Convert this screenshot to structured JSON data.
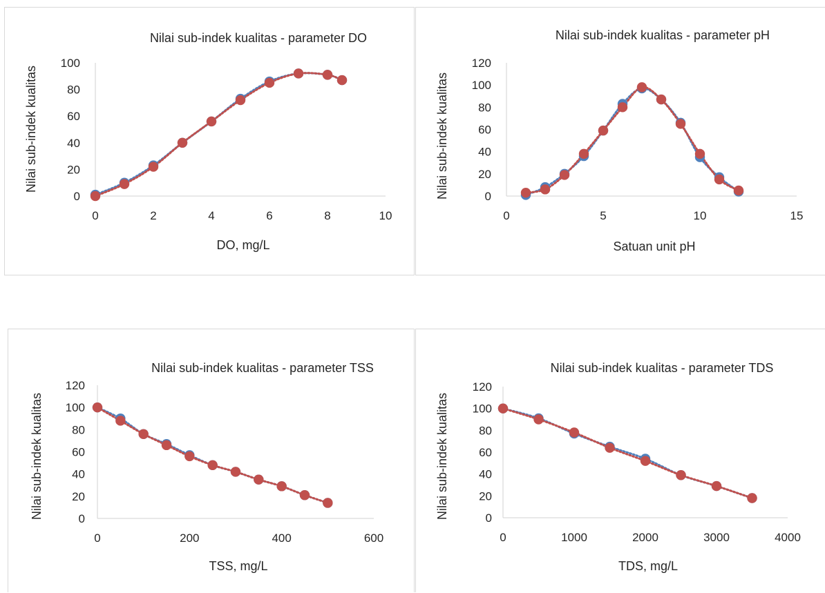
{
  "colors": {
    "series1": "#4f81bd",
    "series2": "#c0504d",
    "axis": "#d9d9d9",
    "text": "#262626"
  },
  "chart_data": [
    {
      "id": "do",
      "type": "scatter",
      "title": "Nilai sub-indek kualitas - parameter DO",
      "xlabel": "DO, mg/L",
      "ylabel": "Nilai sub-indek kualitas",
      "xlim": [
        0,
        10
      ],
      "ylim": [
        0,
        100
      ],
      "xticks": [
        0,
        2,
        4,
        6,
        8,
        10
      ],
      "yticks": [
        0,
        20,
        40,
        60,
        80,
        100
      ],
      "grid": false,
      "legend": "none",
      "series": [
        {
          "color": "#4f81bd",
          "x": [
            0,
            1,
            2,
            3,
            4,
            5,
            6,
            7,
            8,
            8.5
          ],
          "y": [
            1,
            10,
            23,
            40,
            56,
            73,
            86,
            92,
            91,
            87
          ]
        },
        {
          "color": "#c0504d",
          "x": [
            0,
            1,
            2,
            3,
            4,
            5,
            6,
            7,
            8,
            8.5
          ],
          "y": [
            0,
            9,
            22,
            40,
            56,
            72,
            85,
            92,
            91,
            87
          ]
        }
      ]
    },
    {
      "id": "ph",
      "type": "scatter",
      "title": "Nilai sub-indek kualitas - parameter pH",
      "xlabel": "Satuan unit pH",
      "ylabel": "Nilai sub-indek kualitas",
      "xlim": [
        0,
        15
      ],
      "ylim": [
        0,
        120
      ],
      "xticks": [
        0,
        5,
        10,
        15
      ],
      "yticks": [
        0,
        20,
        40,
        60,
        80,
        100,
        120
      ],
      "grid": false,
      "legend": "none",
      "series": [
        {
          "color": "#4f81bd",
          "x": [
            1,
            2,
            3,
            4,
            5,
            6,
            7,
            8,
            9,
            10,
            11,
            12
          ],
          "y": [
            1,
            8,
            20,
            36,
            59,
            83,
            97,
            87,
            66,
            35,
            17,
            4
          ]
        },
        {
          "color": "#c0504d",
          "x": [
            1,
            2,
            3,
            4,
            5,
            6,
            7,
            8,
            9,
            10,
            11,
            12
          ],
          "y": [
            3,
            6,
            19,
            38,
            59,
            80,
            98,
            87,
            65,
            38,
            15,
            5
          ]
        }
      ]
    },
    {
      "id": "tss",
      "type": "scatter",
      "title": "Nilai sub-indek kualitas - parameter TSS",
      "xlabel": "TSS, mg/L",
      "ylabel": "Nilai sub-indek kualitas",
      "xlim": [
        0,
        600
      ],
      "ylim": [
        0,
        120
      ],
      "xticks": [
        0,
        200,
        400,
        600
      ],
      "yticks": [
        0,
        20,
        40,
        60,
        80,
        100,
        120
      ],
      "grid": false,
      "legend": "none",
      "series": [
        {
          "color": "#4f81bd",
          "x": [
            0,
            50,
            100,
            150,
            200,
            250,
            300,
            350,
            400,
            450,
            500
          ],
          "y": [
            100,
            90,
            76,
            67,
            57,
            48,
            42,
            35,
            29,
            21,
            14
          ]
        },
        {
          "color": "#c0504d",
          "x": [
            0,
            50,
            100,
            150,
            200,
            250,
            300,
            350,
            400,
            450,
            500
          ],
          "y": [
            100,
            88,
            76,
            66,
            56,
            48,
            42,
            35,
            29,
            21,
            14
          ]
        }
      ]
    },
    {
      "id": "tds",
      "type": "scatter",
      "title": "Nilai sub-indek kualitas - parameter TDS",
      "xlabel": "TDS, mg/L",
      "ylabel": "Nilai sub-indek kualitas",
      "xlim": [
        0,
        4000
      ],
      "ylim": [
        0,
        120
      ],
      "xticks": [
        0,
        1000,
        2000,
        3000,
        4000
      ],
      "yticks": [
        0,
        20,
        40,
        60,
        80,
        100,
        120
      ],
      "grid": false,
      "legend": "none",
      "series": [
        {
          "color": "#4f81bd",
          "x": [
            0,
            500,
            1000,
            1500,
            2000,
            2500,
            3000,
            3500
          ],
          "y": [
            100,
            91,
            77,
            65,
            54,
            39,
            29,
            18
          ]
        },
        {
          "color": "#c0504d",
          "x": [
            0,
            500,
            1000,
            1500,
            2000,
            2500,
            3000,
            3500
          ],
          "y": [
            100,
            90,
            78,
            64,
            52,
            39,
            29,
            18
          ]
        }
      ]
    }
  ]
}
